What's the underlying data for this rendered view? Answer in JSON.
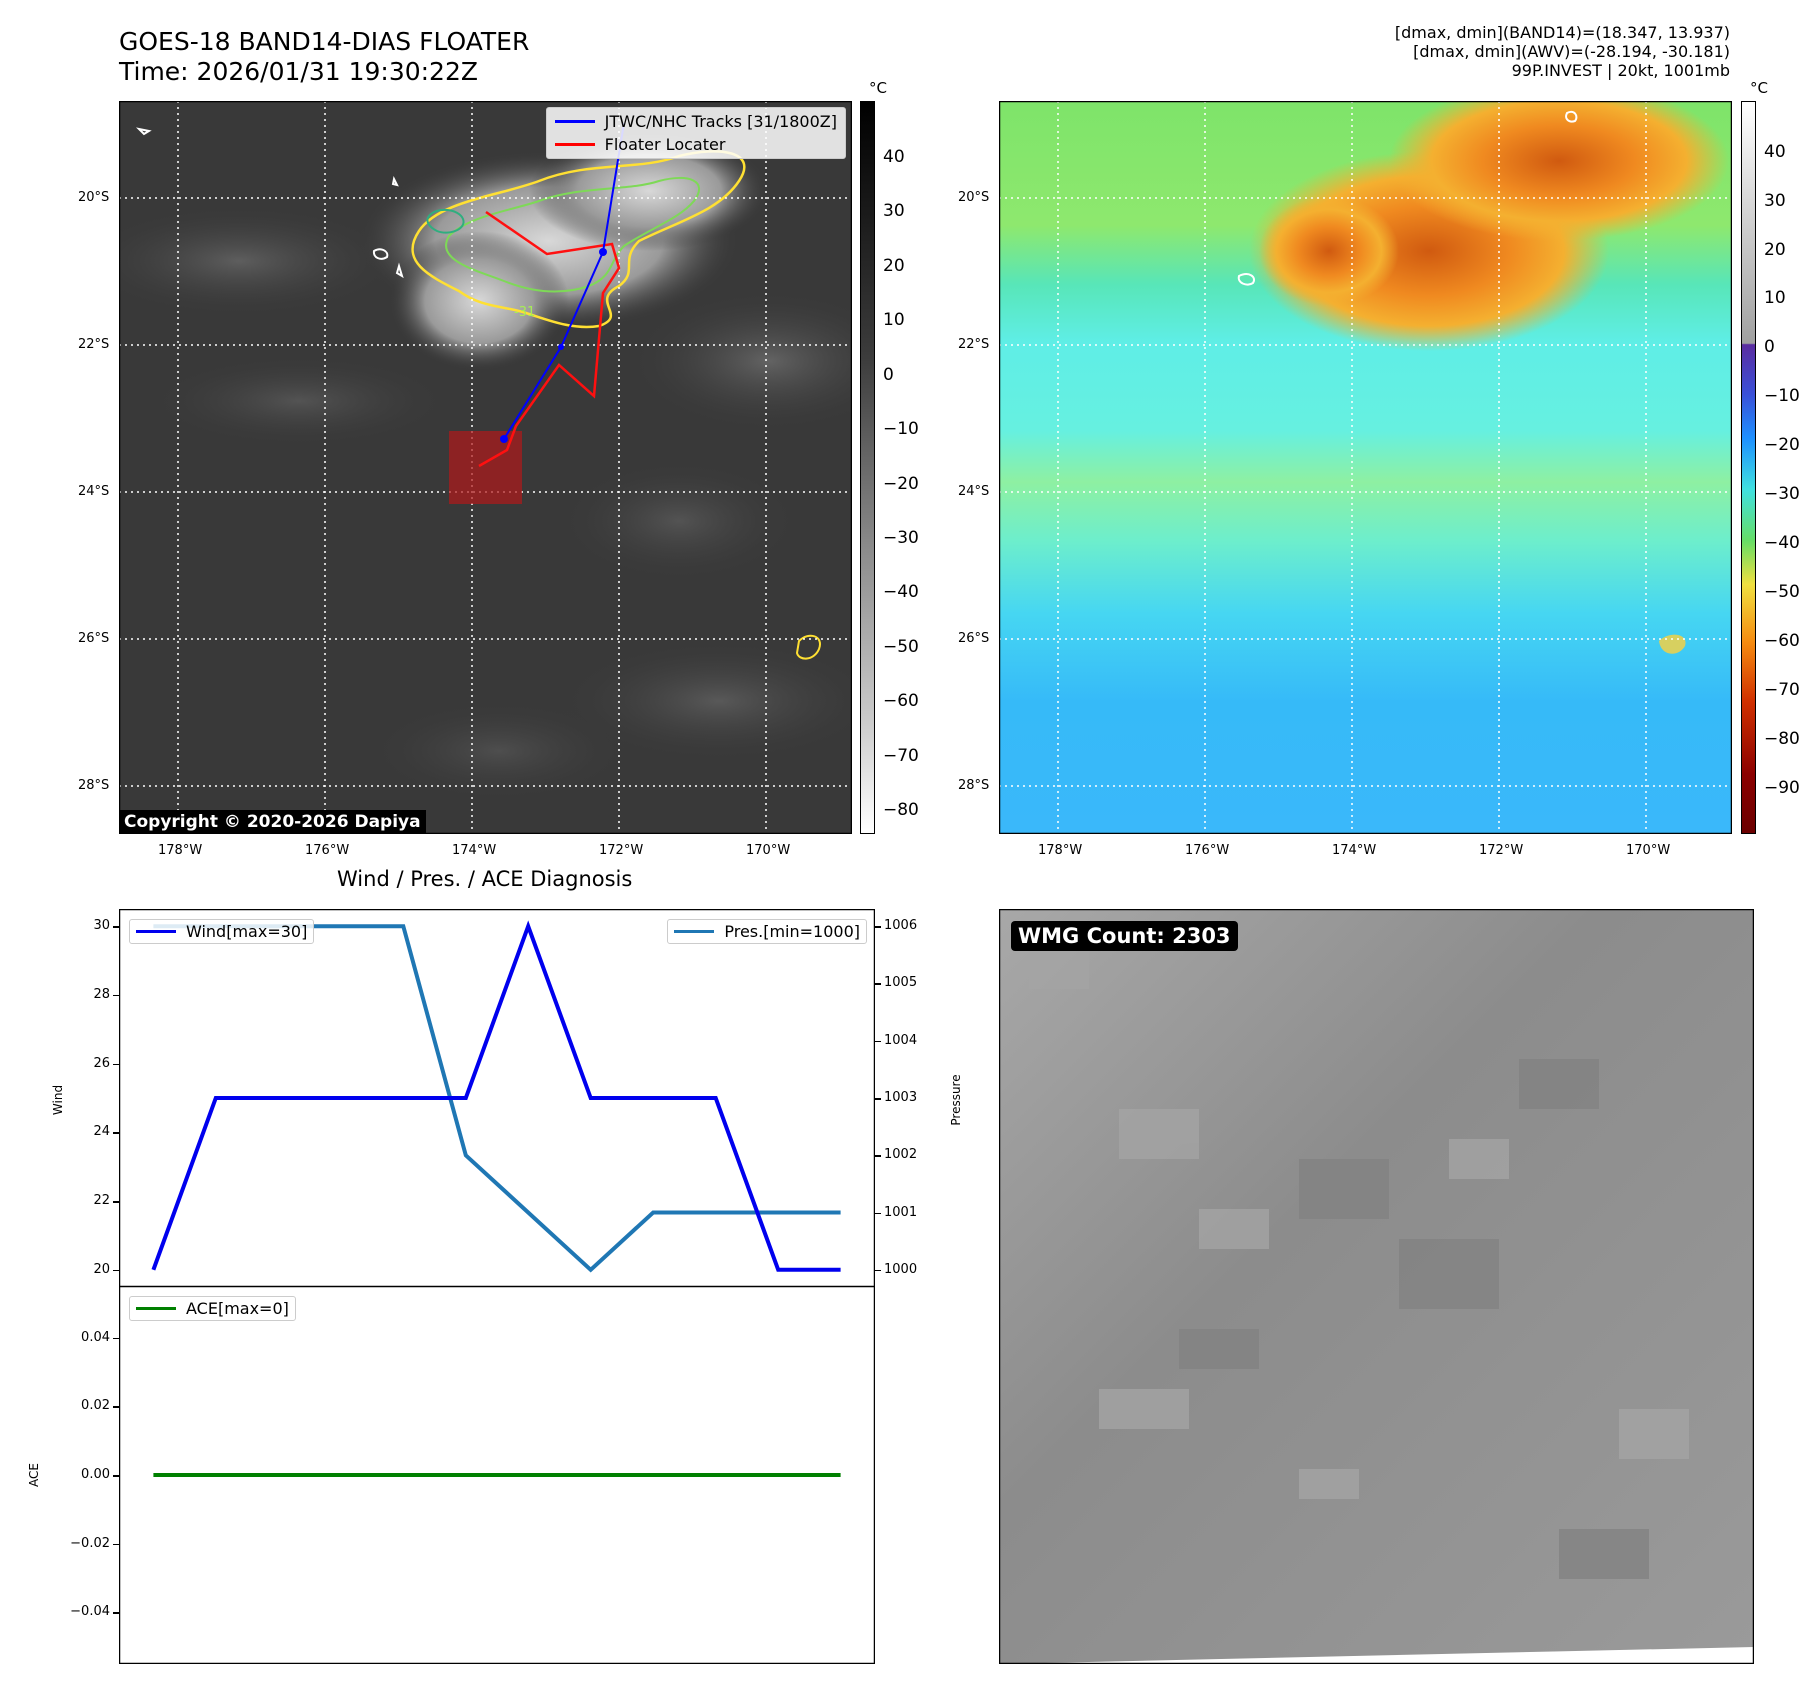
{
  "header": {
    "title_line1": "GOES-18 BAND14-DIAS FLOATER",
    "title_line2": "Time: 2026/01/31 19:30:22Z",
    "info_line1": "[dmax, dmin](BAND14)=(18.347, 13.937)",
    "info_line2": "[dmax, dmin](AWV)=(-28.194, -30.181)",
    "info_line3": "99P.INVEST | 20kt, 1001mb"
  },
  "ir_panel": {
    "lat_labels": [
      "20°S",
      "22°S",
      "24°S",
      "26°S",
      "28°S"
    ],
    "lon_labels": [
      "178°W",
      "176°W",
      "174°W",
      "172°W",
      "170°W"
    ],
    "legend_track": "JTWC/NHC Tracks [31/1800Z]",
    "legend_locater": "Floater Locater",
    "contour_label": "-31",
    "copyright": "Copyright © 2020-2026 Dapiya",
    "colorbar_unit": "°C",
    "colorbar_ticks": [
      "40",
      "30",
      "20",
      "10",
      "0",
      "−10",
      "−20",
      "−30",
      "−40",
      "−50",
      "−60",
      "−70",
      "−80"
    ]
  },
  "wv_panel": {
    "lat_labels": [
      "20°S",
      "22°S",
      "24°S",
      "26°S",
      "28°S"
    ],
    "lon_labels": [
      "178°W",
      "176°W",
      "174°W",
      "172°W",
      "170°W"
    ],
    "colorbar_unit": "°C",
    "colorbar_ticks": [
      "40",
      "30",
      "20",
      "10",
      "0",
      "−10",
      "−20",
      "−30",
      "−40",
      "−50",
      "−60",
      "−70",
      "−80",
      "−90"
    ]
  },
  "diagnosis": {
    "title": "Wind / Pres. / ACE Diagnosis",
    "wind_legend": "Wind[max=30]",
    "pres_legend": "Pres.[min=1000]",
    "ace_legend": "ACE[max=0]",
    "wind_axis_label": "Wind",
    "pres_axis_label": "Pressure",
    "ace_axis_label": "ACE",
    "wind_ticks": [
      "30",
      "28",
      "26",
      "24",
      "22",
      "20"
    ],
    "pres_ticks": [
      "1006",
      "1005",
      "1004",
      "1003",
      "1002",
      "1001",
      "1000"
    ],
    "ace_ticks": [
      "0.04",
      "0.02",
      "0.00",
      "−0.02",
      "−0.04"
    ]
  },
  "wmg_panel": {
    "label": "WMG Count: 2303"
  },
  "colors": {
    "wind": "#0000ee",
    "pressure": "#1f77b4",
    "ace": "#008000",
    "track": "#0000ff",
    "locater": "#ff0000"
  },
  "chart_data": [
    {
      "type": "line",
      "title": "Wind / Pres. / ACE Diagnosis",
      "x": [
        0,
        1,
        2,
        3,
        4,
        5,
        6,
        7,
        8,
        9,
        10,
        11
      ],
      "series": [
        {
          "name": "Wind[max=30]",
          "axis": "left",
          "values": [
            20,
            25,
            25,
            25,
            25,
            25,
            30,
            25,
            25,
            25,
            20,
            20
          ]
        },
        {
          "name": "Pres.[min=1000]",
          "axis": "right",
          "values": [
            1006,
            1006,
            1006,
            1006,
            1006,
            1002,
            1001,
            1000,
            1001,
            1001,
            1001,
            1001
          ]
        }
      ],
      "ylabel": "Wind",
      "ylim": [
        19.5,
        30.5
      ],
      "y2label": "Pressure",
      "y2lim": [
        999.7,
        1006.3
      ]
    },
    {
      "type": "line",
      "x": [
        0,
        1,
        2,
        3,
        4,
        5,
        6,
        7,
        8,
        9,
        10,
        11
      ],
      "series": [
        {
          "name": "ACE[max=0]",
          "values": [
            0,
            0,
            0,
            0,
            0,
            0,
            0,
            0,
            0,
            0,
            0,
            0
          ]
        }
      ],
      "ylabel": "ACE",
      "ylim": [
        -0.055,
        0.055
      ]
    }
  ]
}
